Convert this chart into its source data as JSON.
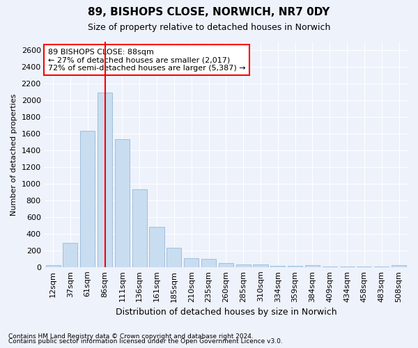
{
  "title1": "89, BISHOPS CLOSE, NORWICH, NR7 0DY",
  "title2": "Size of property relative to detached houses in Norwich",
  "xlabel": "Distribution of detached houses by size in Norwich",
  "ylabel": "Number of detached properties",
  "categories": [
    "12sqm",
    "37sqm",
    "61sqm",
    "86sqm",
    "111sqm",
    "136sqm",
    "161sqm",
    "185sqm",
    "210sqm",
    "235sqm",
    "260sqm",
    "285sqm",
    "310sqm",
    "334sqm",
    "359sqm",
    "384sqm",
    "409sqm",
    "434sqm",
    "458sqm",
    "483sqm",
    "508sqm"
  ],
  "values": [
    25,
    290,
    1630,
    2090,
    1530,
    930,
    480,
    235,
    110,
    100,
    50,
    35,
    30,
    15,
    15,
    20,
    10,
    10,
    5,
    5,
    25
  ],
  "bar_color": "#c9ddf0",
  "bar_edge_color": "#a0bedd",
  "vline_x": 3.5,
  "vline_color": "red",
  "annotation_text": "89 BISHOPS CLOSE: 88sqm\n← 27% of detached houses are smaller (2,017)\n72% of semi-detached houses are larger (5,387) →",
  "annotation_box_facecolor": "white",
  "annotation_box_edgecolor": "red",
  "ylim": [
    0,
    2700
  ],
  "yticks": [
    0,
    200,
    400,
    600,
    800,
    1000,
    1200,
    1400,
    1600,
    1800,
    2000,
    2200,
    2400,
    2600
  ],
  "footnote1": "Contains HM Land Registry data © Crown copyright and database right 2024.",
  "footnote2": "Contains public sector information licensed under the Open Government Licence v3.0.",
  "background_color": "#eef2fb",
  "plot_bg_color": "#eef2fb",
  "grid_color": "#ffffff",
  "title1_fontsize": 11,
  "title2_fontsize": 9,
  "ylabel_fontsize": 8,
  "xlabel_fontsize": 9,
  "tick_fontsize": 8,
  "annotation_fontsize": 8,
  "footnote_fontsize": 6.5
}
